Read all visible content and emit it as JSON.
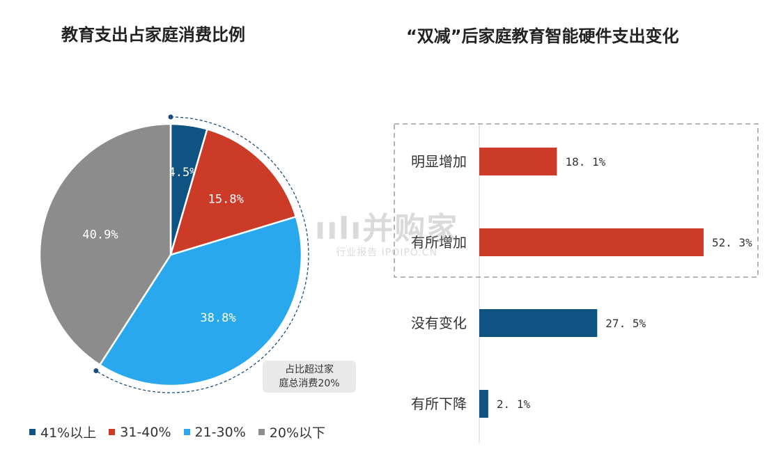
{
  "left_title": "教育支出占家庭消费比例",
  "right_title": "“双减”后家庭教育智能硬件支出变化",
  "callout_line1": "占比超过家",
  "callout_line2": "庭总消费20%",
  "watermark": {
    "main": "ıılı并购家",
    "sub": "行业报告 IPOIPO.CN"
  },
  "legend": [
    {
      "label": "41%以上",
      "color": "#0f5383"
    },
    {
      "label": "31-40%",
      "color": "#cc3a28"
    },
    {
      "label": "21-30%",
      "color": "#2aa8ee"
    },
    {
      "label": "20%以下",
      "color": "#8c8c8c"
    }
  ],
  "chart_data": [
    {
      "type": "pie",
      "title": "教育支出占家庭消费比例",
      "categories": [
        "41%以上",
        "31-40%",
        "21-30%",
        "20%以下"
      ],
      "values": [
        4.5,
        15.8,
        38.8,
        40.9
      ],
      "labels": [
        "4.5%",
        "15.8%",
        "38.8%",
        "40.9%"
      ],
      "colors": [
        "#0f5383",
        "#cc3a28",
        "#2aa8ee",
        "#8c8c8c"
      ],
      "legend_position": "bottom"
    },
    {
      "type": "bar",
      "orientation": "horizontal",
      "title": "“双减”后家庭教育智能硬件支出变化",
      "categories": [
        "明显增加",
        "有所增加",
        "没有变化",
        "有所下降"
      ],
      "values": [
        18.1,
        52.3,
        27.5,
        2.1
      ],
      "labels": [
        "18. 1%",
        "52. 3%",
        "27. 5%",
        "2. 1%"
      ],
      "colors": [
        "#cc3a28",
        "#cc3a28",
        "#0f5383",
        "#0f5383"
      ],
      "grid": false
    }
  ]
}
